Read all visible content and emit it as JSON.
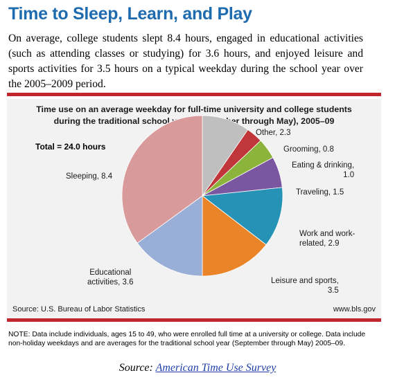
{
  "headline": "Time to Sleep, Learn, and Play",
  "intro_line1": "On average, college students slept 8.4 hours, engaged in educational",
  "intro_line2": "activities (such as attending classes or studying) for 3.6 hours, and",
  "intro_line3": "enjoyed leisure and sports activities for 3.5 hours on a typical",
  "intro_line4": "weekday during the school year over the 2005–2009 period.",
  "colors": {
    "headline": "#1f6bb0",
    "rule": "#c0282d",
    "panel": "#f2f2f2"
  },
  "chart_data": {
    "type": "pie",
    "title_line1": "Time use on an average weekday for full-time university and college students",
    "title_line2": "during the traditional school year (September through May), 2005–09",
    "total_label": "Total = 24.0 hours",
    "series": [
      {
        "name": "Other",
        "value": 2.3,
        "color": "#bfbfbf",
        "label_lines": [
          "Other, 2.3"
        ]
      },
      {
        "name": "Grooming",
        "value": 0.8,
        "color": "#c0363a",
        "label_lines": [
          "Grooming, 0.8"
        ]
      },
      {
        "name": "Eating & drinking",
        "value": 1.0,
        "color": "#8cb43c",
        "label_lines": [
          "Eating & drinking,",
          "1.0"
        ]
      },
      {
        "name": "Traveling",
        "value": 1.5,
        "color": "#7a57a0",
        "label_lines": [
          "Traveling, 1.5"
        ]
      },
      {
        "name": "Work and work-related",
        "value": 2.9,
        "color": "#2592b6",
        "label_lines": [
          "Work and work-",
          "related, 2.9"
        ]
      },
      {
        "name": "Leisure and sports",
        "value": 3.5,
        "color": "#ea8428",
        "label_lines": [
          "Leisure and sports,",
          "3.5"
        ]
      },
      {
        "name": "Educational activities",
        "value": 3.6,
        "color": "#9aafd7",
        "label_lines": [
          "Educational",
          "activities, 3.6"
        ]
      },
      {
        "name": "Sleeping",
        "value": 8.4,
        "color": "#d99a9b",
        "label_lines": [
          "Sleeping, 8.4"
        ]
      }
    ],
    "source_left": "Source: U.S. Bureau of Labor Statistics",
    "source_right": "www.bls.gov"
  },
  "note_line1": "NOTE: Data include individuals, ages 15 to 49, who were enrolled full time at a university or college. Data",
  "note_line2": "include non-holiday weekdays and are averages for the traditional school year (September through May)",
  "note_line3": "2005–09.",
  "source_prefix": "Source: ",
  "source_link_text": "American Time Use Survey"
}
